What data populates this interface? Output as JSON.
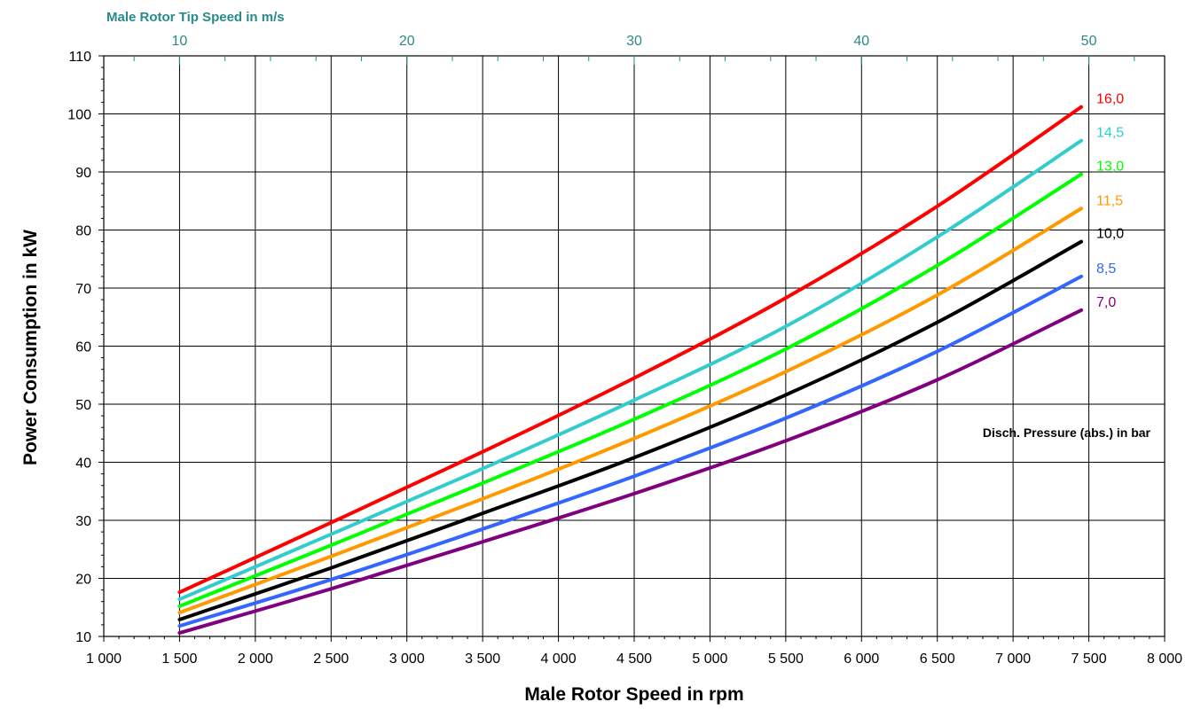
{
  "chart_data": {
    "type": "line",
    "xlabel": "Male Rotor Speed in rpm",
    "ylabel": "Power Consumption in kW",
    "top_xlabel": "Male Rotor Tip Speed in m/s",
    "legend_title": "Disch. Pressure (abs.) in bar",
    "xlim": [
      1000,
      8000
    ],
    "ylim": [
      10,
      110
    ],
    "x_ticks": [
      1000,
      1500,
      2000,
      2500,
      3000,
      3500,
      4000,
      4500,
      5000,
      5500,
      6000,
      6500,
      7000,
      7500,
      8000
    ],
    "x_tick_labels": [
      "1 000",
      "1 500",
      "2 000",
      "2 500",
      "3 000",
      "3 500",
      "4 000",
      "4 500",
      "5 000",
      "5 500",
      "6 000",
      "6 500",
      "7 000",
      "7 500",
      "8 000"
    ],
    "y_ticks": [
      10,
      20,
      30,
      40,
      50,
      60,
      70,
      80,
      90,
      100,
      110
    ],
    "y_tick_labels": [
      "10",
      "20",
      "30",
      "40",
      "50",
      "60",
      "70",
      "80",
      "90",
      "100",
      "110"
    ],
    "top_ticks_rpm": [
      1500,
      3000,
      4500,
      6000,
      7500
    ],
    "top_tick_labels": [
      "10",
      "20",
      "30",
      "40",
      "50"
    ],
    "top_minor_step_rpm": 300,
    "grid": true,
    "x": [
      1500,
      2500,
      3500,
      4500,
      5500,
      6500,
      7450
    ],
    "series": [
      {
        "name": "16,0",
        "color": "#ff0000",
        "values": [
          17.6,
          29.6,
          41.8,
          54.5,
          68.3,
          84.1,
          101.2
        ]
      },
      {
        "name": "14,5",
        "color": "#33cccc",
        "values": [
          16.4,
          27.6,
          38.9,
          50.7,
          63.4,
          78.8,
          95.4
        ]
      },
      {
        "name": "13,0",
        "color": "#00ff00",
        "values": [
          15.2,
          25.7,
          36.4,
          47.4,
          59.5,
          73.9,
          89.6
        ]
      },
      {
        "name": "11,5",
        "color": "#ff9900",
        "values": [
          14.1,
          23.8,
          33.7,
          44.1,
          55.6,
          68.8,
          83.7
        ]
      },
      {
        "name": "10,0",
        "color": "#000000",
        "values": [
          12.9,
          21.8,
          31.2,
          40.8,
          51.6,
          64.1,
          78.0
        ]
      },
      {
        "name": "8,5",
        "color": "#3366ff",
        "values": [
          11.8,
          19.8,
          28.5,
          37.6,
          47.6,
          59.1,
          72.0
        ]
      },
      {
        "name": "7,0",
        "color": "#800080",
        "values": [
          10.6,
          18.2,
          26.3,
          34.6,
          43.7,
          54.2,
          66.2
        ]
      }
    ]
  }
}
